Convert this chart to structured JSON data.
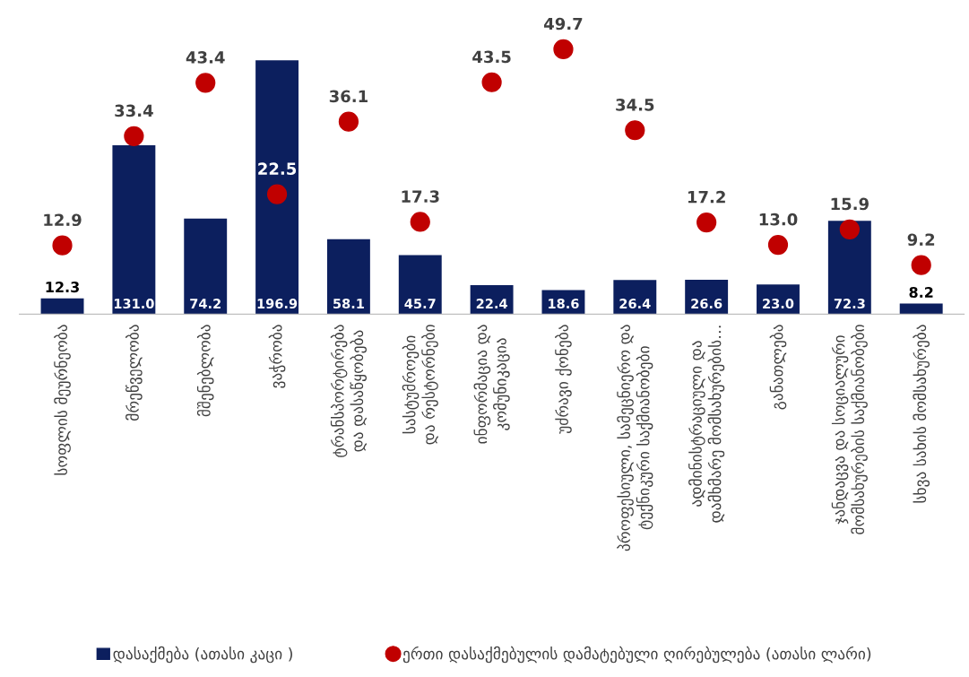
{
  "chart_data": {
    "type": "bar",
    "categories": [
      "სოფლის მეურნეობა",
      "მრეწველობა",
      "მშენებლობა",
      "ვაჭრობა",
      "ტრანსპორტირება და დასაწყობება",
      "სასტუმროები და რესტორნები",
      "ინფორმაცია და კომუნიკაცია",
      "უძრავი ქონება",
      "პროფესიული, სამეცნიერო და ტექნიკური საქმიანობები",
      "ადმინისტრაციული და დამხმარე მომსახურების…",
      "განათლება",
      "ჯანდაცვა და სოციალური მომსახურების საქმიანობები",
      "სხვა სახის მომსახურება"
    ],
    "series": [
      {
        "name": "დასაქმება (ათასი კაცი )",
        "color": "#0c1f5e",
        "values": [
          12.3,
          131.0,
          74.2,
          196.9,
          58.1,
          45.7,
          22.4,
          18.6,
          26.4,
          26.6,
          23.0,
          72.3,
          8.2
        ],
        "value_labels": [
          "12.3",
          "131.0",
          "74.2",
          "196.9",
          "58.1",
          "45.7",
          "22.4",
          "18.6",
          "26.4",
          "26.6",
          "23.0",
          "72.3",
          "8.2"
        ]
      },
      {
        "name": "ერთი დასაქმებულის დამატებული ღირებულება (ათასი ლარი)",
        "type": "scatter",
        "axis": "y2",
        "color": "#c00000",
        "marker": "circle",
        "values": [
          12.9,
          33.4,
          43.4,
          22.5,
          36.1,
          17.3,
          43.5,
          49.7,
          34.5,
          17.2,
          13.0,
          15.9,
          9.2
        ],
        "value_labels": [
          "12.9",
          "33.4",
          "43.4",
          "22.5",
          "36.1",
          "17.3",
          "43.5",
          "49.7",
          "34.5",
          "17.2",
          "13.0",
          "15.9",
          "9.2"
        ]
      }
    ],
    "tick_labels": "x",
    "legend": "bottom"
  }
}
